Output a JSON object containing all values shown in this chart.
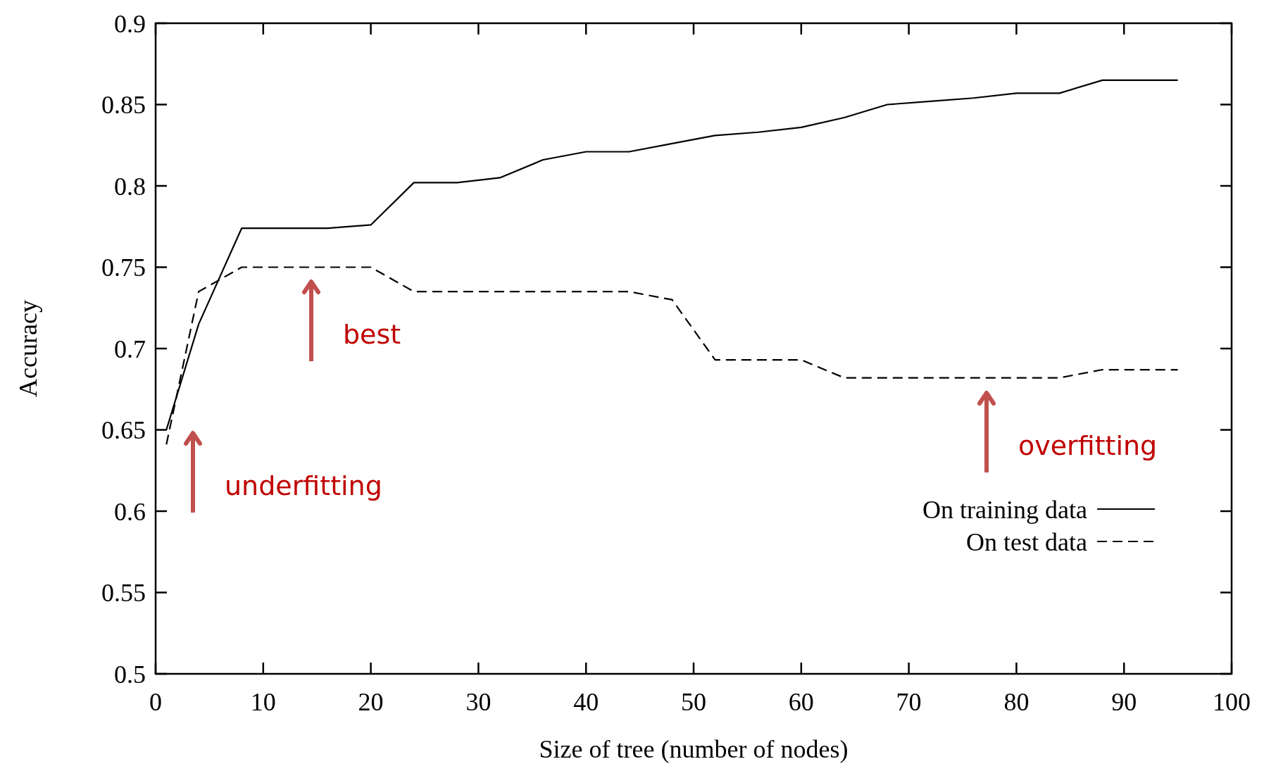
{
  "chart_data": {
    "type": "line",
    "xlabel": "Size of tree (number of nodes)",
    "ylabel": "Accuracy",
    "xlim": [
      0,
      100
    ],
    "xticks": [
      0,
      10,
      20,
      30,
      40,
      50,
      60,
      70,
      80,
      90,
      100
    ],
    "ylim": [
      0.5,
      0.9
    ],
    "yticks": [
      0.5,
      0.55,
      0.6,
      0.65,
      0.7,
      0.75,
      0.8,
      0.85,
      0.9
    ],
    "grid": false,
    "legend": "right",
    "marker": "none",
    "series": [
      {
        "name": "On training data",
        "color": "#000000",
        "line_style": "solid",
        "x": [
          1,
          4,
          8,
          16,
          20,
          24,
          28,
          32,
          36,
          40,
          44,
          48,
          52,
          56,
          60,
          64,
          68,
          72,
          76,
          80,
          84,
          88,
          95
        ],
        "values": [
          0.65,
          0.715,
          0.774,
          0.774,
          0.776,
          0.802,
          0.802,
          0.805,
          0.816,
          0.821,
          0.821,
          0.826,
          0.831,
          0.833,
          0.836,
          0.842,
          0.85,
          0.852,
          0.854,
          0.857,
          0.857,
          0.865,
          0.865
        ]
      },
      {
        "name": "On test data",
        "color": "#000000",
        "line_style": "dashed",
        "x": [
          1,
          4,
          8,
          20,
          24,
          44,
          48,
          52,
          60,
          64,
          84,
          88,
          95
        ],
        "values": [
          0.641,
          0.735,
          0.75,
          0.75,
          0.735,
          0.735,
          0.73,
          0.693,
          0.693,
          0.682,
          0.682,
          0.687,
          0.687
        ]
      }
    ],
    "annotations": [
      "underfitting",
      "best",
      "overfitting"
    ]
  }
}
